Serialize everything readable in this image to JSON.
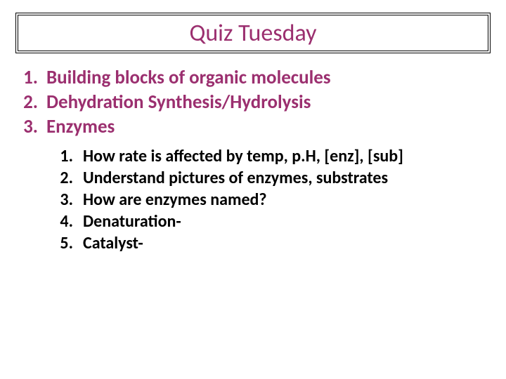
{
  "title": {
    "text": "Quiz Tuesday",
    "color": "#9b2f6f",
    "fontsize": 34,
    "border_color": "#000000"
  },
  "main_list": {
    "color": "#9b2f6f",
    "fontsize": 27,
    "font_weight": "bold",
    "items": [
      {
        "num": "1.",
        "label": "Building blocks of organic molecules"
      },
      {
        "num": "2.",
        "label": "Dehydration Synthesis/Hydrolysis"
      },
      {
        "num": "3.",
        "label": "Enzymes"
      }
    ]
  },
  "sub_list": {
    "color": "#000000",
    "fontsize": 24,
    "font_weight": "bold",
    "items": [
      {
        "num": "1.",
        "label": "How rate is affected by temp, p.H, [enz], [sub]"
      },
      {
        "num": "2.",
        "label": "Understand pictures of enzymes, substrates"
      },
      {
        "num": "3.",
        "label": "How are enzymes named?"
      },
      {
        "num": "4.",
        "label": "Denaturation-"
      },
      {
        "num": "5.",
        "label": "Catalyst-"
      }
    ]
  },
  "background_color": "#ffffff"
}
